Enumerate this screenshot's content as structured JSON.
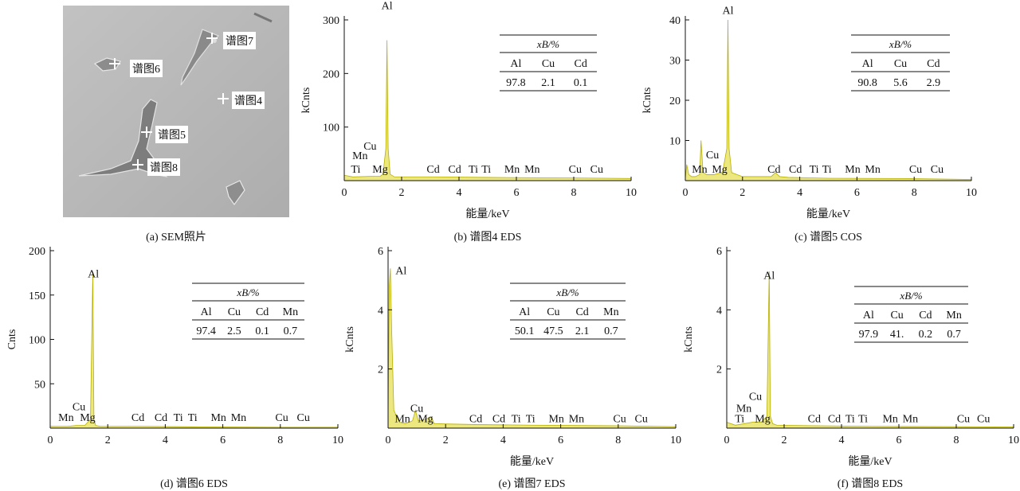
{
  "sem": {
    "caption": "(a) SEM照片",
    "markers": [
      {
        "label": "谱图7"
      },
      {
        "label": "谱图6"
      },
      {
        "label": "谱图4"
      },
      {
        "label": "谱图5"
      },
      {
        "label": "谱图8"
      }
    ]
  },
  "chart_data": [
    {
      "type": "line",
      "caption": "(b) 谱图4 EDS",
      "xlabel": "能量/keV",
      "ylabel": "kCnts",
      "xlim": [
        0,
        10
      ],
      "ylim": [
        0,
        300
      ],
      "xticks": [
        0,
        2,
        4,
        6,
        8,
        10
      ],
      "yticks": [
        100,
        200,
        300
      ],
      "series": [
        {
          "x": [
            0,
            0.3,
            0.9,
            1.25,
            1.35,
            1.45,
            1.49,
            1.53,
            1.6,
            1.75,
            3.2,
            5,
            8,
            10
          ],
          "values": [
            10,
            7,
            8,
            8,
            12,
            60,
            262,
            60,
            12,
            7,
            7,
            6,
            5,
            4
          ]
        }
      ],
      "element_labels": [
        {
          "text": "Al",
          "x": 1.49,
          "y": 320
        },
        {
          "text": "Cu",
          "x": 0.9,
          "y": 58
        },
        {
          "text": "Mn",
          "x": 0.55,
          "y": 40
        },
        {
          "text": "Ti",
          "x": 0.4,
          "y": 15
        },
        {
          "text": "Mg",
          "x": 1.25,
          "y": 15
        },
        {
          "text": "Cd",
          "x": 3.1,
          "y": 15
        },
        {
          "text": "Cd",
          "x": 3.85,
          "y": 15
        },
        {
          "text": "Ti",
          "x": 4.5,
          "y": 15
        },
        {
          "text": "Ti",
          "x": 4.95,
          "y": 15
        },
        {
          "text": "Mn",
          "x": 5.85,
          "y": 15
        },
        {
          "text": "Mn",
          "x": 6.55,
          "y": 15
        },
        {
          "text": "Cu",
          "x": 8.05,
          "y": 15
        },
        {
          "text": "Cu",
          "x": 8.8,
          "y": 15
        }
      ],
      "table": {
        "header": "xB/%",
        "columns": [
          "Al",
          "Cu",
          "Cd"
        ],
        "values": [
          "97.8",
          "2.1",
          "0.1"
        ]
      }
    },
    {
      "type": "line",
      "caption": "(c) 谱图5 COS",
      "xlabel": "能量/keV",
      "ylabel": "kCnts",
      "xlim": [
        0,
        10
      ],
      "ylim": [
        0,
        40
      ],
      "xticks": [
        0,
        2,
        4,
        6,
        8,
        10
      ],
      "yticks": [
        10,
        20,
        30,
        40
      ],
      "series": [
        {
          "x": [
            0,
            0.05,
            0.12,
            0.22,
            0.35,
            0.5,
            0.55,
            0.62,
            0.75,
            1.0,
            1.3,
            1.45,
            1.49,
            1.53,
            1.62,
            2.0,
            3.0,
            3.15,
            3.3,
            3.6,
            5,
            8,
            10
          ],
          "values": [
            0.5,
            4,
            1.5,
            1,
            1,
            1.5,
            10,
            2,
            1.5,
            1.5,
            2,
            8,
            40,
            8,
            2,
            1,
            1,
            2,
            1,
            0.8,
            0.6,
            0.5,
            0.3
          ]
        }
      ],
      "element_labels": [
        {
          "text": "Al",
          "x": 1.49,
          "y": 41.5
        },
        {
          "text": "Cu",
          "x": 0.95,
          "y": 5.5
        },
        {
          "text": "Mn",
          "x": 0.5,
          "y": 2
        },
        {
          "text": "Mg",
          "x": 1.2,
          "y": 2
        },
        {
          "text": "Cd",
          "x": 3.1,
          "y": 2
        },
        {
          "text": "Cd",
          "x": 3.85,
          "y": 2
        },
        {
          "text": "Ti",
          "x": 4.5,
          "y": 2
        },
        {
          "text": "Ti",
          "x": 4.95,
          "y": 2
        },
        {
          "text": "Mn",
          "x": 5.85,
          "y": 2
        },
        {
          "text": "Mn",
          "x": 6.55,
          "y": 2
        },
        {
          "text": "Cu",
          "x": 8.05,
          "y": 2
        },
        {
          "text": "Cu",
          "x": 8.8,
          "y": 2
        }
      ],
      "table": {
        "header": "xB/%",
        "columns": [
          "Al",
          "Cu",
          "Cd"
        ],
        "values": [
          "90.8",
          "5.6",
          "2.9"
        ]
      }
    },
    {
      "type": "line",
      "caption": "(d) 谱图6 EDS",
      "xlabel": "",
      "ylabel": "Cnts",
      "xlim": [
        0,
        10
      ],
      "ylim": [
        0,
        200
      ],
      "xticks": [
        0,
        2,
        4,
        6,
        8,
        10
      ],
      "yticks": [
        50,
        100,
        150,
        200
      ],
      "series": [
        {
          "x": [
            0,
            0.3,
            0.6,
            0.9,
            1.2,
            1.4,
            1.48,
            1.52,
            1.58,
            1.75,
            3.2,
            5,
            8,
            10
          ],
          "values": [
            2,
            2,
            2,
            3,
            3,
            10,
            175,
            10,
            3,
            2,
            2,
            1.5,
            1,
            1
          ]
        }
      ],
      "element_labels": [
        {
          "text": "Al",
          "x": 1.5,
          "y": 170
        },
        {
          "text": "Cu",
          "x": 1.0,
          "y": 20
        },
        {
          "text": "Mn",
          "x": 0.55,
          "y": 8
        },
        {
          "text": "Mg",
          "x": 1.3,
          "y": 8
        },
        {
          "text": "Cd",
          "x": 3.05,
          "y": 8
        },
        {
          "text": "Cd",
          "x": 3.85,
          "y": 8
        },
        {
          "text": "Ti",
          "x": 4.45,
          "y": 8
        },
        {
          "text": "Ti",
          "x": 4.95,
          "y": 8
        },
        {
          "text": "Mn",
          "x": 5.85,
          "y": 8
        },
        {
          "text": "Mn",
          "x": 6.55,
          "y": 8
        },
        {
          "text": "Cu",
          "x": 8.05,
          "y": 8
        },
        {
          "text": "Cu",
          "x": 8.8,
          "y": 8
        }
      ],
      "table": {
        "header": "xB/%",
        "columns": [
          "Al",
          "Cu",
          "Cd",
          "Mn"
        ],
        "values": [
          "97.4",
          "2.5",
          "0.1",
          "0.7"
        ]
      }
    },
    {
      "type": "line",
      "caption": "(e) 谱图7 EDS",
      "xlabel": "能量/keV",
      "ylabel": "kCnts",
      "xlim": [
        0,
        10
      ],
      "ylim": [
        0,
        6
      ],
      "xticks": [
        0,
        2,
        4,
        6,
        8,
        10
      ],
      "yticks": [
        2,
        4,
        6
      ],
      "series": [
        {
          "x": [
            0,
            0.04,
            0.08,
            0.12,
            0.2,
            0.4,
            0.6,
            0.85,
            0.95,
            1.05,
            1.3,
            1.5,
            1.6,
            3.2,
            5,
            8,
            10
          ],
          "values": [
            0.3,
            4.8,
            5.4,
            3.5,
            0.6,
            0.2,
            0.15,
            0.25,
            0.6,
            0.25,
            0.3,
            0.4,
            0.15,
            0.12,
            0.1,
            0.08,
            0.05
          ]
        }
      ],
      "element_labels": [
        {
          "text": "Al",
          "x": 0.45,
          "y": 5.2
        },
        {
          "text": "Cu",
          "x": 1.0,
          "y": 0.55
        },
        {
          "text": "Mn",
          "x": 0.5,
          "y": 0.2
        },
        {
          "text": "Mg",
          "x": 1.3,
          "y": 0.2
        },
        {
          "text": "Cd",
          "x": 3.05,
          "y": 0.2
        },
        {
          "text": "Cd",
          "x": 3.85,
          "y": 0.2
        },
        {
          "text": "Ti",
          "x": 4.45,
          "y": 0.2
        },
        {
          "text": "Ti",
          "x": 4.95,
          "y": 0.2
        },
        {
          "text": "Mn",
          "x": 5.85,
          "y": 0.2
        },
        {
          "text": "Mn",
          "x": 6.55,
          "y": 0.2
        },
        {
          "text": "Cu",
          "x": 8.05,
          "y": 0.2
        },
        {
          "text": "Cu",
          "x": 8.8,
          "y": 0.2
        }
      ],
      "table": {
        "header": "xB/%",
        "columns": [
          "Al",
          "Cu",
          "Cd",
          "Mn"
        ],
        "values": [
          "50.1",
          "47.5",
          "2.1",
          "0.7"
        ]
      }
    },
    {
      "type": "line",
      "caption": "(f) 谱图8 EDS",
      "xlabel": "能量/keV",
      "ylabel": "kCnts",
      "xlim": [
        0,
        10
      ],
      "ylim": [
        0,
        6
      ],
      "xticks": [
        0,
        2,
        4,
        6,
        8,
        10
      ],
      "yticks": [
        2,
        4,
        6
      ],
      "series": [
        {
          "x": [
            0,
            0.3,
            0.6,
            0.9,
            1.2,
            1.4,
            1.48,
            1.52,
            1.6,
            1.75,
            3.2,
            5,
            8,
            10
          ],
          "values": [
            0.2,
            0.1,
            0.15,
            0.2,
            0.2,
            0.4,
            5.3,
            0.4,
            0.15,
            0.1,
            0.08,
            0.06,
            0.05,
            0.04
          ]
        }
      ],
      "element_labels": [
        {
          "text": "Al",
          "x": 1.48,
          "y": 5.05
        },
        {
          "text": "Cu",
          "x": 1.0,
          "y": 0.95
        },
        {
          "text": "Mn",
          "x": 0.6,
          "y": 0.55
        },
        {
          "text": "Ti",
          "x": 0.45,
          "y": 0.2
        },
        {
          "text": "Mg",
          "x": 1.25,
          "y": 0.2
        },
        {
          "text": "Cd",
          "x": 3.05,
          "y": 0.2
        },
        {
          "text": "Cd",
          "x": 3.75,
          "y": 0.2
        },
        {
          "text": "Ti",
          "x": 4.3,
          "y": 0.2
        },
        {
          "text": "Ti",
          "x": 4.75,
          "y": 0.2
        },
        {
          "text": "Mn",
          "x": 5.7,
          "y": 0.2
        },
        {
          "text": "Mn",
          "x": 6.4,
          "y": 0.2
        },
        {
          "text": "Cu",
          "x": 8.25,
          "y": 0.2
        },
        {
          "text": "Cu",
          "x": 8.95,
          "y": 0.2
        }
      ],
      "table": {
        "header": "xB/%",
        "columns": [
          "Al",
          "Cu",
          "Cd",
          "Mn"
        ],
        "values": [
          "97.9",
          "41.",
          "0.2",
          "0.7"
        ]
      }
    }
  ],
  "colors": {
    "spectrum_fill": "#ece77f",
    "spectrum_line": "#b8b000",
    "axis": "#111111"
  }
}
